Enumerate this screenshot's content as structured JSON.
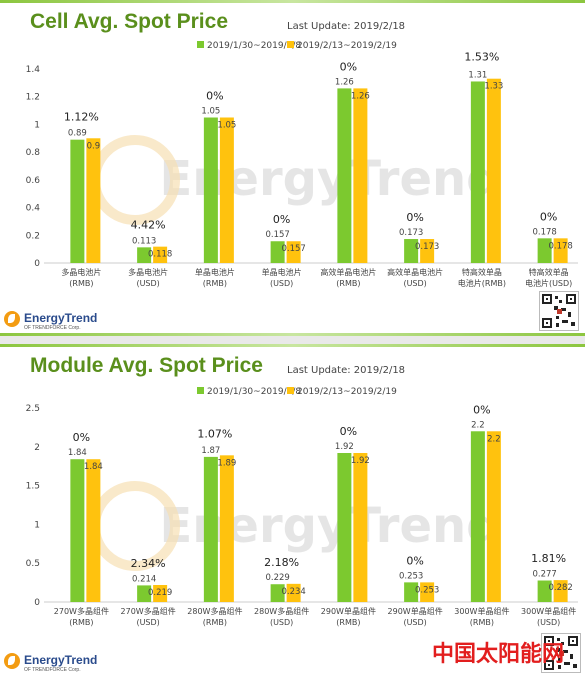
{
  "watermark": {
    "text": "EnergyTrend"
  },
  "brand": {
    "name": "EnergyTrend",
    "sub": "OF TRENDFORCE Corp."
  },
  "site_mark": "中国太阳能网",
  "colors": {
    "series1": "#7cc92f",
    "series2": "#ffc20e",
    "title": "#5a8f1c",
    "accent_bar": "#8cc63f"
  },
  "chart_data": [
    {
      "type": "bar",
      "title": "Cell Avg. Spot Price",
      "last_update": "Last Update: 2019/2/18",
      "ylim": [
        0,
        1.4
      ],
      "yticks": [
        "0",
        "0.2",
        "0.4",
        "0.6",
        "0.8",
        "1",
        "1.2",
        "1.4"
      ],
      "categories": [
        [
          "多晶电池片",
          "(RMB)"
        ],
        [
          "多晶电池片",
          "(USD)"
        ],
        [
          "单晶电池片",
          "(RMB)"
        ],
        [
          "单晶电池片",
          "(USD)"
        ],
        [
          "高效单晶电池片",
          "(RMB)"
        ],
        [
          "高效单晶电池片",
          "(USD)"
        ],
        [
          "特高效单晶",
          "电池片(RMB)"
        ],
        [
          "特高效单晶",
          "电池片(USD)"
        ]
      ],
      "series": [
        {
          "name": "2019/1/30~2019/2/8",
          "values": [
            0.89,
            0.113,
            1.05,
            0.157,
            1.26,
            0.173,
            1.31,
            0.178
          ],
          "labels": [
            "0.89",
            "0.113",
            "1.05",
            "0.157",
            "1.26",
            "0.173",
            "1.31",
            "0.178"
          ]
        },
        {
          "name": "2019/2/13~2019/2/19",
          "values": [
            0.9,
            0.118,
            1.05,
            0.157,
            1.26,
            0.173,
            1.33,
            0.178
          ],
          "labels": [
            "0.9",
            "0.118",
            "1.05",
            "0.157",
            "1.26",
            "0.173",
            "1.33",
            "0.178"
          ]
        }
      ],
      "changes": [
        "1.12%",
        "4.42%",
        "0%",
        "0%",
        "0%",
        "0%",
        "1.53%",
        "0%"
      ],
      "grid": false,
      "legend": "top-center"
    },
    {
      "type": "bar",
      "title": "Module Avg. Spot Price",
      "last_update": "Last Update: 2019/2/18",
      "ylim": [
        0,
        2.5
      ],
      "yticks": [
        "0",
        "0.5",
        "1",
        "1.5",
        "2",
        "2.5"
      ],
      "categories": [
        [
          "270W多晶组件",
          "(RMB)"
        ],
        [
          "270W多晶组件",
          "(USD)"
        ],
        [
          "280W多晶组件",
          "(RMB)"
        ],
        [
          "280W多晶组件",
          "(USD)"
        ],
        [
          "290W单晶组件",
          "(RMB)"
        ],
        [
          "290W单晶组件",
          "(USD)"
        ],
        [
          "300W单晶组件",
          "(RMB)"
        ],
        [
          "300W单晶组件",
          "(USD)"
        ]
      ],
      "series": [
        {
          "name": "2019/1/30~2019/2/8",
          "values": [
            1.84,
            0.214,
            1.87,
            0.229,
            1.92,
            0.253,
            2.2,
            0.277
          ],
          "labels": [
            "1.84",
            "0.214",
            "1.87",
            "0.229",
            "1.92",
            "0.253",
            "2.2",
            "0.277"
          ]
        },
        {
          "name": "2019/2/13~2019/2/19",
          "values": [
            1.84,
            0.219,
            1.89,
            0.234,
            1.92,
            0.253,
            2.2,
            0.282
          ],
          "labels": [
            "1.84",
            "0.219",
            "1.89",
            "0.234",
            "1.92",
            "0.253",
            "2.2",
            "0.282"
          ]
        }
      ],
      "changes": [
        "0%",
        "2.34%",
        "1.07%",
        "2.18%",
        "0%",
        "0%",
        "0%",
        "1.81%"
      ],
      "grid": false,
      "legend": "top-center"
    }
  ]
}
